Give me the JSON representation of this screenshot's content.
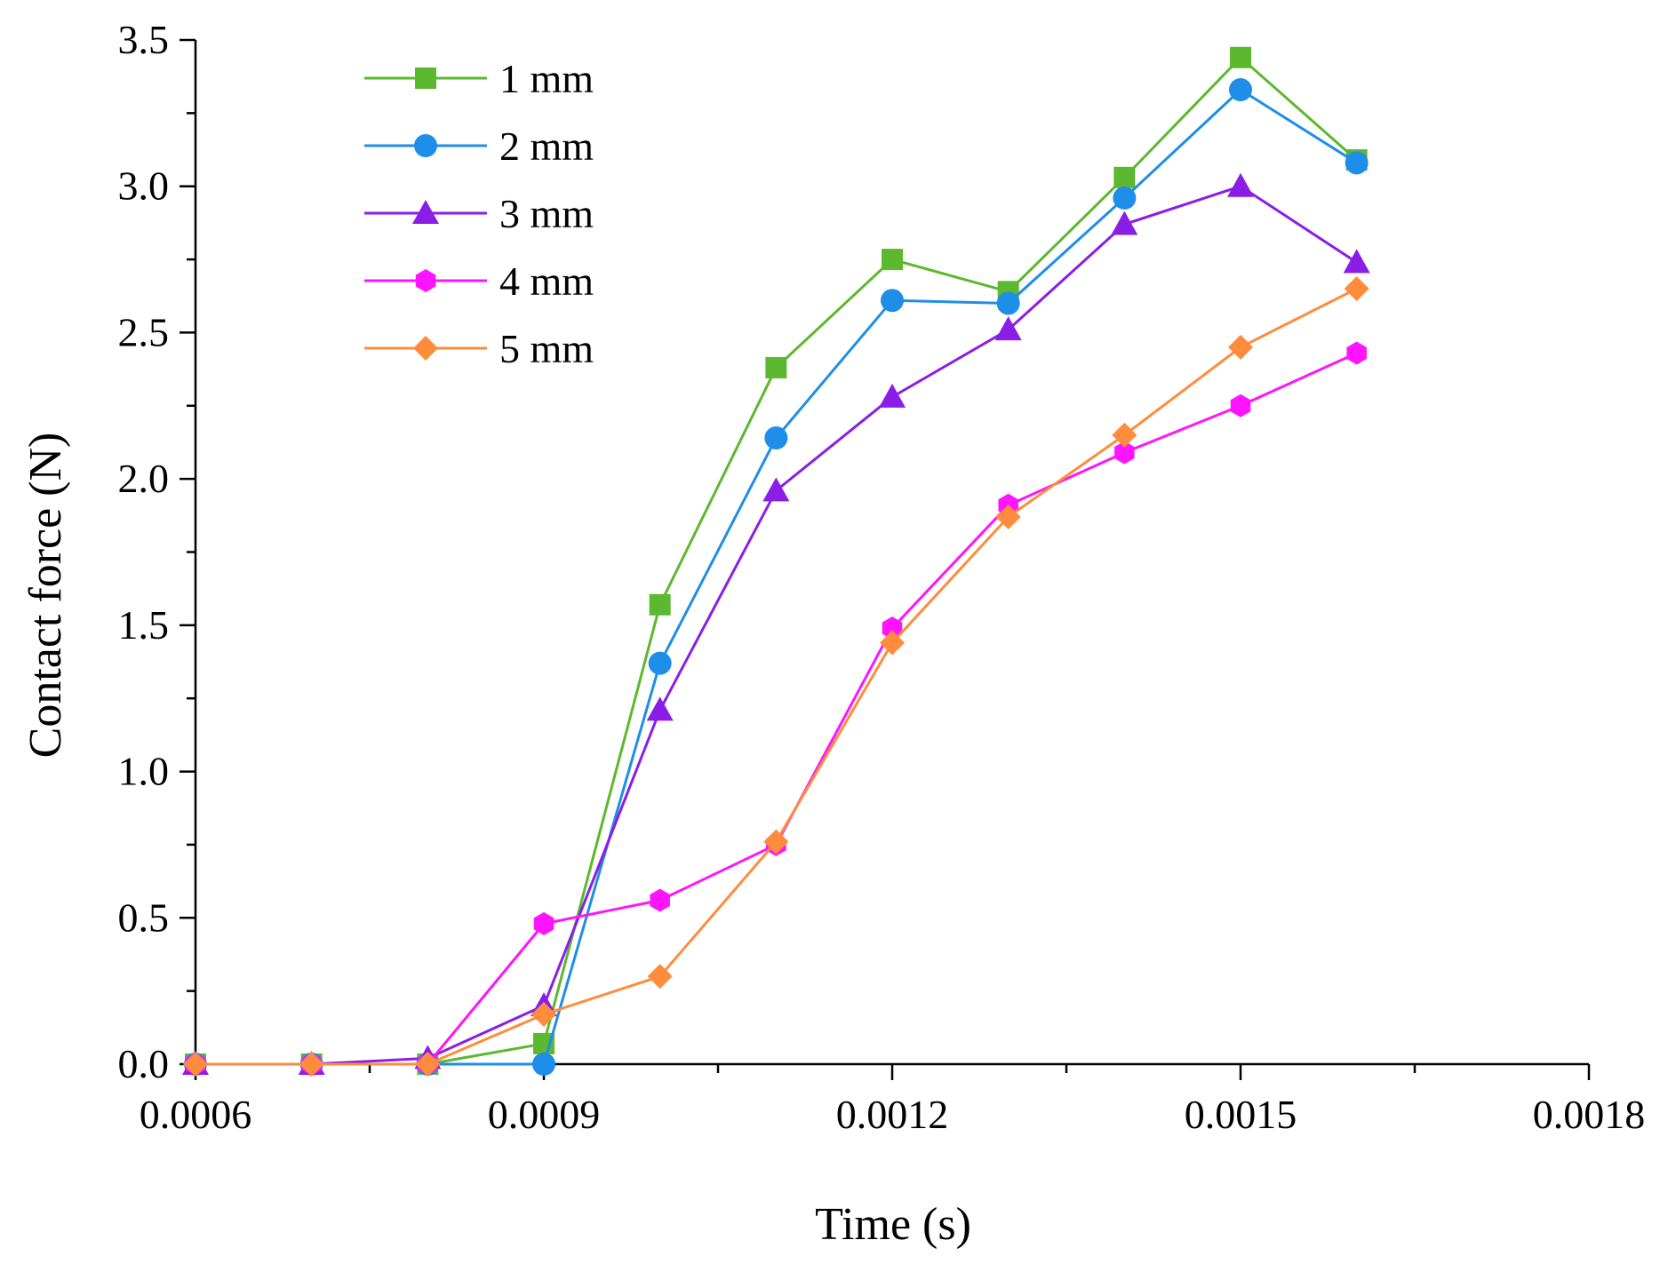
{
  "chart_data": {
    "type": "line",
    "title": "",
    "xlabel": "Time (s)",
    "ylabel": "Contact force (N)",
    "xlim": [
      0.0006,
      0.0018
    ],
    "ylim": [
      0.0,
      3.5
    ],
    "x_ticks": [
      "0.0006",
      "0.0009",
      "0.0012",
      "0.0015",
      "0.0018"
    ],
    "x_tick_values": [
      0.0006,
      0.0009,
      0.0012,
      0.0015,
      0.0018
    ],
    "x_minor_tick_values": [
      0.00075,
      0.00105,
      0.00135,
      0.00165
    ],
    "y_ticks": [
      "0.0",
      "0.5",
      "1.0",
      "1.5",
      "2.0",
      "2.5",
      "3.0",
      "3.5"
    ],
    "y_tick_values": [
      0.0,
      0.5,
      1.0,
      1.5,
      2.0,
      2.5,
      3.0,
      3.5
    ],
    "y_minor_tick_values": [
      0.25,
      0.75,
      1.25,
      1.75,
      2.25,
      2.75,
      3.25
    ],
    "grid": false,
    "legend_position": "top-left",
    "x": [
      0.0006,
      0.0007,
      0.0008,
      0.0009,
      0.001,
      0.0011,
      0.0012,
      0.0013,
      0.0014,
      0.0015,
      0.0016
    ],
    "series": [
      {
        "name": "1 mm",
        "color": "#5cb82e",
        "marker": "square",
        "values": [
          0.0,
          0.0,
          0.0,
          0.07,
          1.57,
          2.38,
          2.75,
          2.64,
          3.03,
          3.44,
          3.09
        ]
      },
      {
        "name": "2 mm",
        "color": "#1e8ee8",
        "marker": "circle",
        "values": [
          0.0,
          0.0,
          0.0,
          0.0,
          1.37,
          2.14,
          2.61,
          2.6,
          2.96,
          3.33,
          3.08
        ]
      },
      {
        "name": "3 mm",
        "color": "#8a1ee6",
        "marker": "triangle",
        "values": [
          0.0,
          0.0,
          0.02,
          0.2,
          1.21,
          1.96,
          2.28,
          2.51,
          2.87,
          3.0,
          2.74
        ]
      },
      {
        "name": "4 mm",
        "color": "#ff14ff",
        "marker": "hexagon",
        "values": [
          0.0,
          0.0,
          0.0,
          0.48,
          0.56,
          0.75,
          1.49,
          1.91,
          2.09,
          2.25,
          2.43
        ]
      },
      {
        "name": "5 mm",
        "color": "#ff8c3c",
        "marker": "diamond",
        "values": [
          0.0,
          0.0,
          0.0,
          0.17,
          0.3,
          0.76,
          1.44,
          1.87,
          2.15,
          2.45,
          2.65
        ]
      }
    ]
  }
}
